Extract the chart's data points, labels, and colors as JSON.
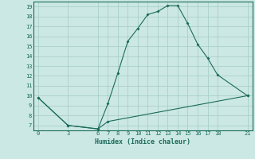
{
  "xlabel": "Humidex (Indice chaleur)",
  "bg_color": "#cce8e4",
  "grid_color": "#aacfcb",
  "line_color": "#1a6b5a",
  "upper_x": [
    0,
    3,
    6,
    7,
    8,
    9,
    10,
    11,
    12,
    13,
    14,
    15,
    16,
    17,
    18,
    21
  ],
  "upper_y": [
    9.8,
    7.0,
    6.65,
    9.2,
    12.3,
    15.5,
    16.8,
    18.2,
    18.5,
    19.1,
    19.1,
    17.3,
    15.2,
    13.8,
    12.1,
    10.0
  ],
  "lower_x": [
    0,
    3,
    6,
    7,
    21
  ],
  "lower_y": [
    9.8,
    7.0,
    6.65,
    7.4,
    10.0
  ],
  "xlim": [
    -0.5,
    21.5
  ],
  "ylim": [
    6.5,
    19.5
  ],
  "xticks": [
    0,
    3,
    6,
    7,
    8,
    9,
    10,
    11,
    12,
    13,
    14,
    15,
    16,
    17,
    18,
    21
  ],
  "yticks": [
    7,
    8,
    9,
    10,
    11,
    12,
    13,
    14,
    15,
    16,
    17,
    18,
    19
  ],
  "tick_fontsize": 5,
  "xlabel_fontsize": 6,
  "marker_size": 2.0
}
